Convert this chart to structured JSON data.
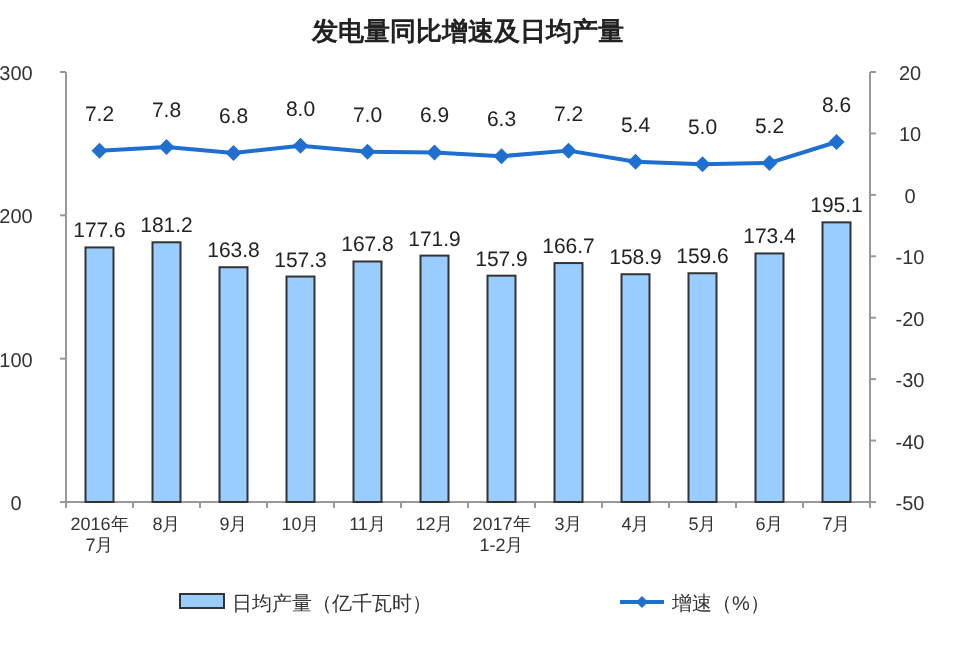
{
  "chart_data": {
    "type": "bar",
    "title": "发电量同比增速及日均产量",
    "categories": [
      "2016年\n7月",
      "8月",
      "9月",
      "10月",
      "11月",
      "12月",
      "2017年\n1-2月",
      "3月",
      "4月",
      "5月",
      "6月",
      "7月"
    ],
    "series": [
      {
        "name": "日均产量（亿千瓦时）",
        "color": "#99ccff",
        "values": [
          177.6,
          181.2,
          163.8,
          157.3,
          167.8,
          171.9,
          157.9,
          166.7,
          158.9,
          159.6,
          173.4,
          195.1
        ]
      },
      {
        "name": "增速（%）",
        "type": "line",
        "axis": "y2",
        "color": "#1f6fd0",
        "marker": "diamond",
        "values": [
          7.2,
          7.8,
          6.8,
          8.0,
          7.0,
          6.9,
          6.3,
          7.2,
          5.4,
          5.0,
          5.2,
          8.6
        ],
        "value_labels": [
          "7.2",
          "7.8",
          "6.8",
          "8.0",
          "7.0",
          "6.9",
          "6.3",
          "7.2",
          "5.4",
          "5.0",
          "5.2",
          "8.6"
        ]
      }
    ],
    "ylim": [
      0,
      300
    ],
    "yticks": [
      0,
      100,
      200,
      300
    ],
    "y2lim": [
      -50,
      20
    ],
    "y2ticks": [
      -50,
      -40,
      -30,
      -20,
      -10,
      0,
      10,
      20
    ],
    "data_labels": true,
    "grid": false,
    "legend": "bottom"
  }
}
